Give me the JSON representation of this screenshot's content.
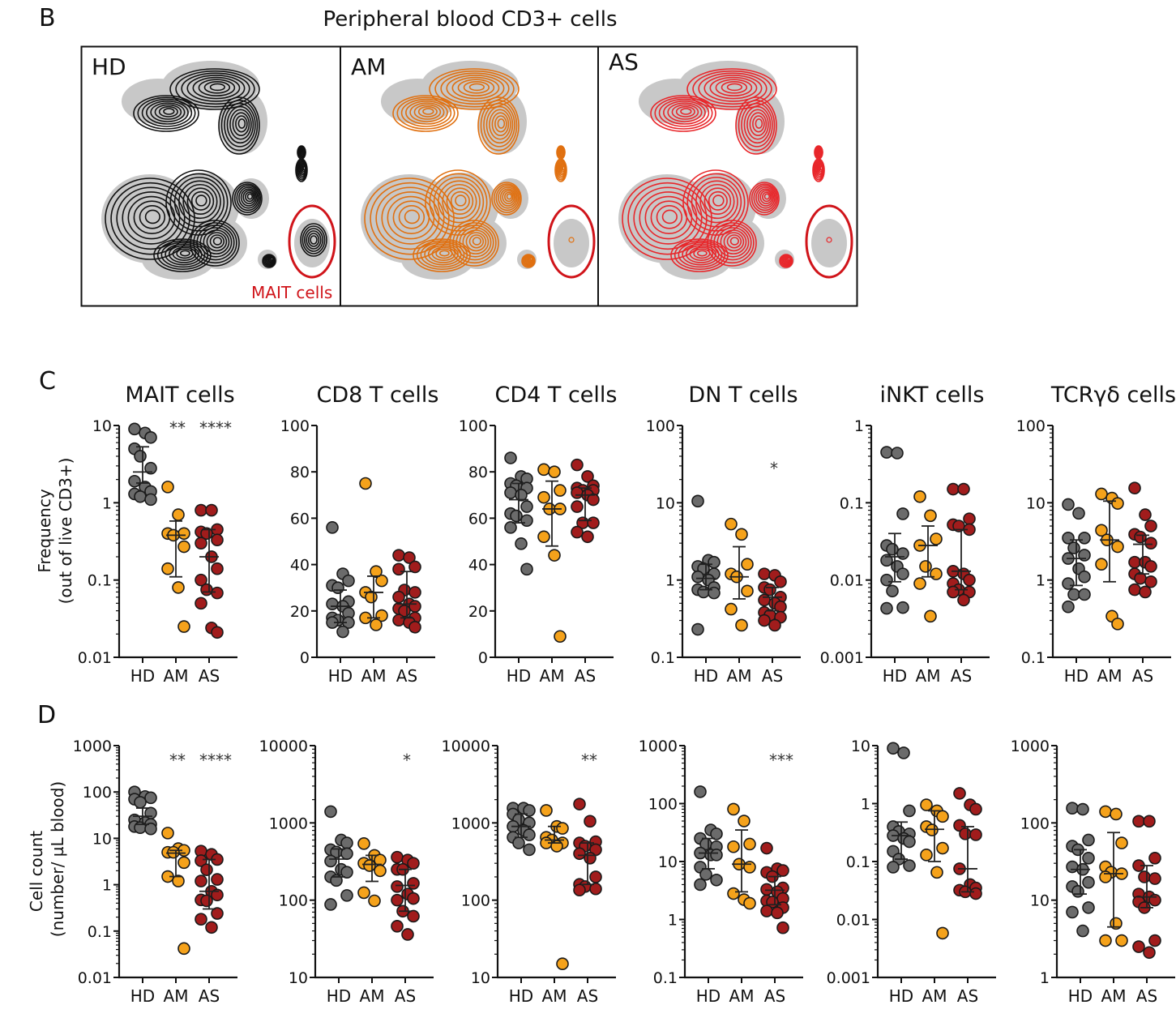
{
  "figure": {
    "panel_b_letter": "B",
    "panel_c_letter": "C",
    "panel_d_letter": "D",
    "panel_b_title": "Peripheral blood CD3+ cells",
    "flow_panels": [
      {
        "label": "HD",
        "color": "#111111"
      },
      {
        "label": "AM",
        "color": "#e07010"
      },
      {
        "label": "AS",
        "color": "#e8262a"
      }
    ],
    "mait_gate_label": "MAIT cells",
    "gate_color": "#d0141a",
    "background_color": "#c8c8c8",
    "row_c_ylabel": [
      "Frequency",
      "(out of live CD3+)"
    ],
    "row_d_ylabel": [
      "Cell count",
      "(number/ µL blood)"
    ]
  },
  "groups": [
    "HD",
    "AM",
    "AS"
  ],
  "group_colors": {
    "HD": "#6b6b6b",
    "AM": "#f5a21b",
    "AS": "#a11c1c"
  },
  "chart_data": [
    {
      "row": "C",
      "type": "scatter",
      "title": "MAIT cells",
      "scale": "log",
      "ylim": [
        0.01,
        10
      ],
      "ticks": [
        "0.01",
        "0.1",
        "1",
        "10"
      ],
      "significance": {
        "AM": "**",
        "AS": "****"
      },
      "series": [
        {
          "name": "HD",
          "values": [
            9,
            8,
            7,
            5,
            4,
            2.8,
            1.9,
            1.6,
            1.4,
            1.3,
            1.2,
            1.1
          ],
          "median": 2.5,
          "iqr": [
            1.8,
            5.3
          ]
        },
        {
          "name": "AM",
          "values": [
            1.6,
            0.7,
            0.4,
            0.4,
            0.38,
            0.27,
            0.14,
            0.08,
            0.025
          ],
          "median": 0.38,
          "iqr": [
            0.11,
            0.58
          ]
        },
        {
          "name": "AS",
          "values": [
            0.8,
            0.8,
            0.45,
            0.42,
            0.4,
            0.33,
            0.3,
            0.2,
            0.14,
            0.1,
            0.075,
            0.068,
            0.05,
            0.024,
            0.021
          ],
          "median": 0.2,
          "iqr": [
            0.07,
            0.45
          ]
        }
      ]
    },
    {
      "row": "C",
      "type": "scatter",
      "title": "CD8 T cells",
      "scale": "linear",
      "ylim": [
        0,
        100
      ],
      "ticks": [
        "0",
        "20",
        "40",
        "60",
        "80",
        "100"
      ],
      "significance": {},
      "series": [
        {
          "name": "HD",
          "values": [
            56,
            36,
            33,
            31,
            30,
            24,
            23,
            22,
            19,
            17,
            16,
            15,
            15,
            11
          ],
          "median": 22,
          "iqr": [
            15,
            29
          ]
        },
        {
          "name": "AM",
          "values": [
            75,
            37,
            33,
            28,
            26,
            18,
            17,
            14
          ],
          "median": 28,
          "iqr": [
            17,
            35
          ]
        },
        {
          "name": "AS",
          "values": [
            44,
            43,
            39,
            38,
            29,
            28,
            26,
            23,
            22,
            21,
            20,
            17,
            16,
            15,
            13
          ],
          "median": 23,
          "iqr": [
            17,
            37
          ]
        }
      ]
    },
    {
      "row": "C",
      "type": "scatter",
      "title": "CD4 T cells",
      "scale": "linear",
      "ylim": [
        0,
        100
      ],
      "ticks": [
        "0",
        "20",
        "40",
        "60",
        "80",
        "100"
      ],
      "significance": {},
      "series": [
        {
          "name": "HD",
          "values": [
            86,
            78,
            77,
            75,
            74,
            73,
            71,
            70,
            65,
            62,
            61,
            59,
            56,
            49,
            38
          ],
          "median": 68,
          "iqr": [
            58,
            75
          ]
        },
        {
          "name": "AM",
          "values": [
            81,
            80,
            72,
            69,
            64,
            64,
            52,
            44,
            9
          ],
          "median": 64,
          "iqr": [
            48,
            76
          ]
        },
        {
          "name": "AS",
          "values": [
            83,
            78,
            74,
            73,
            72,
            72,
            71,
            70,
            68,
            65,
            58,
            58,
            54,
            52
          ],
          "median": 70,
          "iqr": [
            59,
            73
          ]
        }
      ]
    },
    {
      "row": "C",
      "type": "scatter",
      "title": "DN T cells",
      "scale": "log",
      "ylim": [
        0.1,
        100
      ],
      "ticks": [
        "0.1",
        "1",
        "10",
        "100"
      ],
      "significance": {
        "AS": "*"
      },
      "series": [
        {
          "name": "HD",
          "values": [
            10.5,
            1.8,
            1.7,
            1.5,
            1.4,
            1.2,
            1.1,
            1.0,
            0.8,
            0.75,
            0.7,
            0.68,
            0.23
          ],
          "median": 1.05,
          "iqr": [
            0.75,
            1.6
          ]
        },
        {
          "name": "AM",
          "values": [
            5.3,
            3.9,
            1.6,
            1.2,
            1.1,
            0.72,
            0.42,
            0.26
          ],
          "median": 1.1,
          "iqr": [
            0.57,
            2.7
          ]
        },
        {
          "name": "AS",
          "values": [
            1.2,
            1.15,
            0.95,
            0.8,
            0.75,
            0.6,
            0.55,
            0.5,
            0.45,
            0.38,
            0.35,
            0.33,
            0.3,
            0.26
          ],
          "median": 0.6,
          "iqr": [
            0.4,
            0.8
          ]
        }
      ]
    },
    {
      "row": "C",
      "type": "scatter",
      "title": "iNKT cells",
      "scale": "log",
      "ylim": [
        0.001,
        1
      ],
      "ticks": [
        "0.001",
        "0.01",
        "0.1",
        "1"
      ],
      "significance": {},
      "series": [
        {
          "name": "HD",
          "values": [
            0.45,
            0.44,
            0.072,
            0.028,
            0.025,
            0.022,
            0.018,
            0.015,
            0.012,
            0.01,
            0.0072,
            0.0044,
            0.0043
          ],
          "median": 0.02,
          "iqr": [
            0.0095,
            0.04
          ]
        },
        {
          "name": "AM",
          "values": [
            0.12,
            0.068,
            0.034,
            0.028,
            0.015,
            0.012,
            0.009,
            0.0034
          ],
          "median": 0.028,
          "iqr": [
            0.011,
            0.05
          ]
        },
        {
          "name": "AS",
          "values": [
            0.15,
            0.15,
            0.062,
            0.052,
            0.05,
            0.045,
            0.013,
            0.012,
            0.01,
            0.009,
            0.0075,
            0.007,
            0.007,
            0.0055
          ],
          "median": 0.013,
          "iqr": [
            0.0075,
            0.045
          ]
        }
      ]
    },
    {
      "row": "C",
      "type": "scatter",
      "title": "TCRγδ cells",
      "scale": "log",
      "ylim": [
        0.1,
        100
      ],
      "ticks": [
        "0.1",
        "1",
        "10",
        "100"
      ],
      "significance": {},
      "series": [
        {
          "name": "HD",
          "values": [
            9.5,
            7.3,
            3.5,
            3.5,
            2.6,
            2.1,
            1.9,
            1.4,
            1.1,
            0.9,
            0.65,
            0.65,
            0.45
          ],
          "median": 1.9,
          "iqr": [
            0.85,
            3.3
          ]
        },
        {
          "name": "AM",
          "values": [
            13,
            11.5,
            9.8,
            4.4,
            3.3,
            2.7,
            1.6,
            0.34,
            0.27
          ],
          "median": 3.3,
          "iqr": [
            0.95,
            10.5
          ]
        },
        {
          "name": "AS",
          "values": [
            15.5,
            7,
            5,
            3.9,
            3.6,
            3,
            1.7,
            1.7,
            1.5,
            1.2,
            1.05,
            0.95,
            0.75,
            0.7
          ],
          "median": 2.9,
          "iqr": [
            1.2,
            3.8
          ]
        }
      ]
    },
    {
      "row": "D",
      "type": "scatter",
      "title": "",
      "scale": "log",
      "ylim": [
        0.01,
        1000
      ],
      "ticks": [
        "0.01",
        "0.1",
        "1",
        "10",
        "100",
        "1000"
      ],
      "significance": {
        "AM": "**",
        "AS": "****"
      },
      "series": [
        {
          "name": "HD",
          "values": [
            100,
            80,
            75,
            70,
            60,
            35,
            25,
            22,
            20,
            18,
            17,
            16
          ],
          "median": 30,
          "iqr": [
            20,
            45
          ]
        },
        {
          "name": "AM",
          "values": [
            13,
            6,
            5.5,
            5,
            5,
            3,
            1.5,
            1.2,
            0.042
          ],
          "median": 4.8,
          "iqr": [
            1.5,
            5.5
          ]
        },
        {
          "name": "AS",
          "values": [
            5.3,
            4.5,
            3.5,
            3.3,
            2.1,
            1.3,
            1.2,
            0.72,
            0.6,
            0.47,
            0.45,
            0.24,
            0.18,
            0.12
          ],
          "median": 0.72,
          "iqr": [
            0.3,
            3.5
          ]
        }
      ]
    },
    {
      "row": "D",
      "type": "scatter",
      "title": "",
      "scale": "log",
      "ylim": [
        10,
        10000
      ],
      "ticks": [
        "10",
        "100",
        "1000",
        "10000"
      ],
      "significance": {
        "AS": "*"
      },
      "series": [
        {
          "name": "HD",
          "values": [
            1400,
            600,
            550,
            450,
            420,
            400,
            320,
            250,
            230,
            200,
            180,
            115,
            88
          ],
          "median": 340,
          "iqr": [
            200,
            460
          ]
        },
        {
          "name": "AM",
          "values": [
            540,
            380,
            330,
            300,
            280,
            240,
            125,
            98
          ],
          "median": 290,
          "iqr": [
            175,
            380
          ]
        },
        {
          "name": "AS",
          "values": [
            360,
            330,
            300,
            250,
            250,
            165,
            150,
            120,
            105,
            100,
            72,
            62,
            46,
            36
          ],
          "median": 155,
          "iqr": [
            72,
            250
          ]
        }
      ]
    },
    {
      "row": "D",
      "type": "scatter",
      "title": "",
      "scale": "log",
      "ylim": [
        10,
        10000
      ],
      "ticks": [
        "10",
        "100",
        "1000",
        "10000"
      ],
      "significance": {
        "AS": "**"
      },
      "series": [
        {
          "name": "HD",
          "values": [
            1550,
            1550,
            1450,
            1300,
            1100,
            1000,
            900,
            800,
            700,
            650,
            550,
            450
          ],
          "median": 900,
          "iqr": [
            650,
            1300
          ]
        },
        {
          "name": "AM",
          "values": [
            1450,
            900,
            850,
            650,
            600,
            550,
            550,
            500,
            15
          ],
          "median": 600,
          "iqr": [
            550,
            900
          ]
        },
        {
          "name": "AS",
          "values": [
            1750,
            1050,
            570,
            550,
            500,
            450,
            400,
            350,
            200,
            160,
            150,
            140,
            135
          ],
          "median": 380,
          "iqr": [
            160,
            550
          ]
        }
      ]
    },
    {
      "row": "D",
      "type": "scatter",
      "title": "",
      "scale": "log",
      "ylim": [
        0.1,
        1000
      ],
      "ticks": [
        "0.1",
        "1",
        "10",
        "100",
        "1000"
      ],
      "significance": {
        "AS": "***"
      },
      "series": [
        {
          "name": "HD",
          "values": [
            160,
            35,
            30,
            25,
            20,
            18,
            14,
            13,
            13,
            8,
            6,
            4.8,
            4
          ],
          "median": 14,
          "iqr": [
            7.5,
            25
          ]
        },
        {
          "name": "AM",
          "values": [
            80,
            50,
            20,
            18,
            9,
            8,
            2.8,
            2.2,
            1.9
          ],
          "median": 9,
          "iqr": [
            3,
            35
          ]
        },
        {
          "name": "AS",
          "values": [
            17,
            7.5,
            7,
            6.5,
            5.5,
            3.5,
            3.3,
            3,
            2.3,
            2.1,
            2,
            1.6,
            1.4,
            1.3,
            0.72
          ],
          "median": 3.2,
          "iqr": [
            1.8,
            5.5
          ]
        }
      ]
    },
    {
      "row": "D",
      "type": "scatter",
      "title": "",
      "scale": "log",
      "ylim": [
        0.001,
        10
      ],
      "ticks": [
        "0.001",
        "0.01",
        "0.1",
        "1",
        "10"
      ],
      "significance": {},
      "series": [
        {
          "name": "HD",
          "values": [
            9,
            7.5,
            0.75,
            0.4,
            0.33,
            0.3,
            0.28,
            0.25,
            0.22,
            0.15,
            0.11,
            0.085,
            0.08
          ],
          "median": 0.28,
          "iqr": [
            0.11,
            0.48
          ]
        },
        {
          "name": "AM",
          "values": [
            0.95,
            0.75,
            0.6,
            0.4,
            0.35,
            0.17,
            0.13,
            0.065,
            0.0058
          ],
          "median": 0.36,
          "iqr": [
            0.1,
            0.75
          ]
        },
        {
          "name": "AS",
          "values": [
            1.5,
            0.95,
            0.8,
            0.42,
            0.3,
            0.29,
            0.075,
            0.04,
            0.035,
            0.032,
            0.03,
            0.028
          ],
          "median": 0.075,
          "iqr": [
            0.03,
            0.4
          ]
        }
      ]
    },
    {
      "row": "D",
      "type": "scatter",
      "title": "",
      "scale": "log",
      "ylim": [
        1,
        1000
      ],
      "ticks": [
        "1",
        "10",
        "100",
        "1000"
      ],
      "significance": {},
      "series": [
        {
          "name": "HD",
          "values": [
            155,
            150,
            60,
            50,
            45,
            35,
            27,
            25,
            17,
            15,
            13,
            8,
            7,
            4
          ],
          "median": 25,
          "iqr": [
            12,
            45
          ]
        },
        {
          "name": "AM",
          "values": [
            140,
            130,
            55,
            27,
            23,
            22,
            20,
            5,
            3,
            3
          ],
          "median": 22,
          "iqr": [
            4.5,
            75
          ]
        },
        {
          "name": "AS",
          "values": [
            105,
            105,
            35,
            28,
            20,
            19,
            12,
            11,
            10,
            9.5,
            8,
            3,
            2.5,
            2.1
          ],
          "median": 11,
          "iqr": [
            8,
            28
          ]
        }
      ]
    }
  ]
}
